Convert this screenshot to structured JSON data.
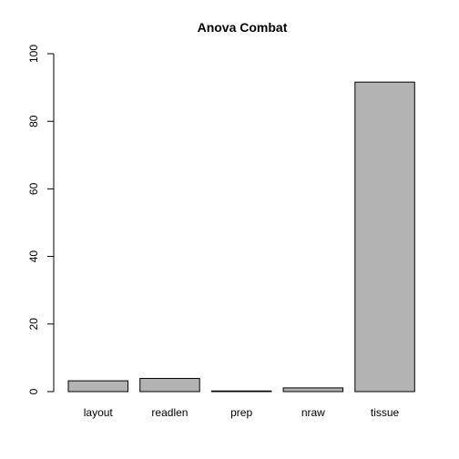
{
  "chart_data": {
    "type": "bar",
    "title": "Anova Combat",
    "xlabel": "",
    "ylabel": "",
    "categories": [
      "layout",
      "readlen",
      "prep",
      "nraw",
      "tissue"
    ],
    "values": [
      3.2,
      3.9,
      0.2,
      1.1,
      91.6
    ],
    "ylim": [
      0,
      100
    ],
    "yticks": [
      0,
      20,
      40,
      60,
      80,
      100
    ],
    "grid": false,
    "legend": "none",
    "colors": {
      "bar_fill": "#b3b3b3",
      "bar_stroke": "#000000",
      "axis": "#000000"
    }
  }
}
